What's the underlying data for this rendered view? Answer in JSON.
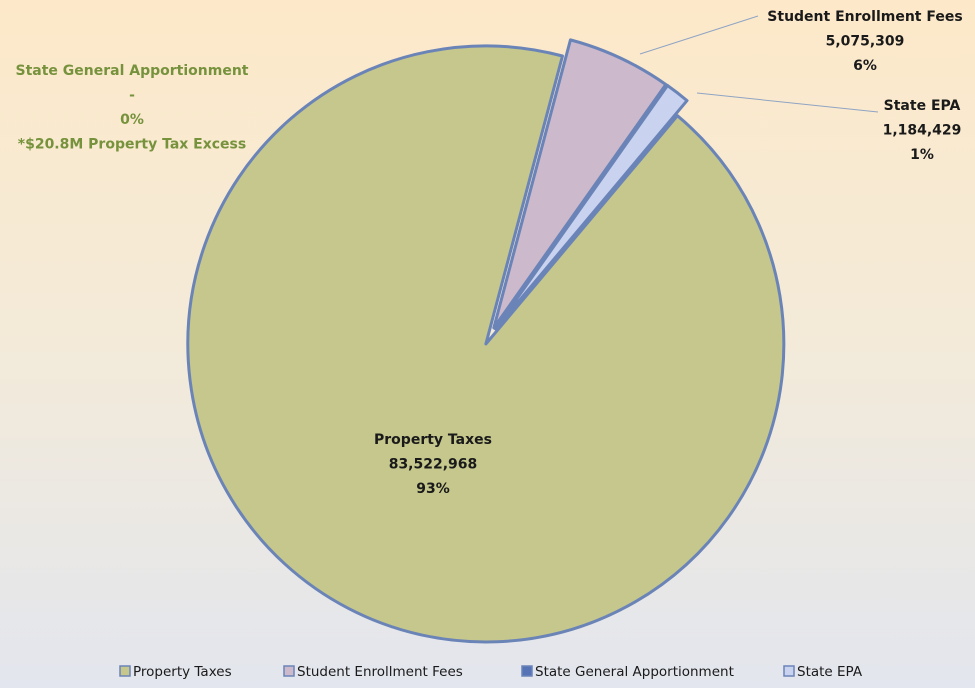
{
  "chart_data": {
    "type": "pie",
    "categories": [
      "Property Taxes",
      "Student Enrollment Fees",
      "State General Apportionment",
      "State EPA"
    ],
    "values": [
      83522968,
      5075309,
      0,
      1184429
    ],
    "value_labels": [
      "83,522,968",
      "5,075,309",
      "-",
      "1,184,429"
    ],
    "percent_labels": [
      "93%",
      "6%",
      "0%",
      "1%"
    ],
    "colors": [
      "#c5c78c",
      "#cdb9cc",
      "#5573b5",
      "#c9d2ef"
    ],
    "annotation": "*$20.8M Property Tax Excess",
    "legend": "bottom"
  }
}
